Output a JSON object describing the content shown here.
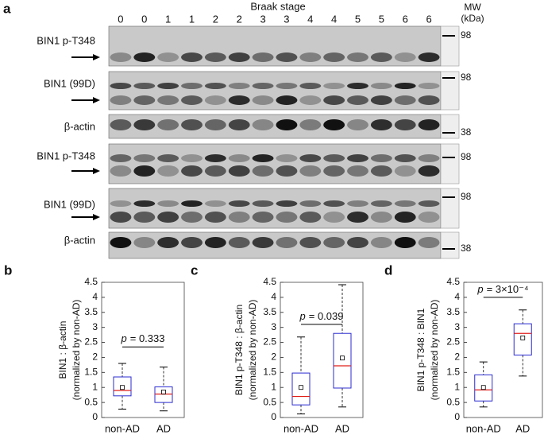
{
  "blot": {
    "panel": "a",
    "title": "Braak stage",
    "lanes": [
      "0",
      "0",
      "1",
      "1",
      "2",
      "2",
      "3",
      "3",
      "4",
      "4",
      "5",
      "5",
      "6",
      "6"
    ],
    "mw_label": [
      "MW",
      "(kDa)"
    ],
    "rows": [
      {
        "label": "BIN1 p-T348",
        "arrow": true,
        "mw": 98
      },
      {
        "label": "BIN1 (99D)",
        "arrow": true,
        "mw": 98
      },
      {
        "label": "β-actin",
        "arrow": false,
        "mw": 38
      },
      {
        "label": "BIN1 p-T348",
        "arrow": true,
        "mw": 98
      },
      {
        "label": "BIN1 (99D)",
        "arrow": true,
        "mw": 98
      },
      {
        "label": "β-actin",
        "arrow": false,
        "mw": 38
      }
    ]
  },
  "chart_data": [
    {
      "type": "box",
      "panel": "b",
      "ylabel": [
        "BIN1 : β-actin",
        "(normalized by non-AD)"
      ],
      "categories": [
        "non-AD",
        "AD"
      ],
      "ylim": [
        0,
        4.5
      ],
      "yticks": [
        0,
        0.5,
        1,
        1.5,
        2,
        2.5,
        3,
        3.5,
        4,
        4.5
      ],
      "box_color": "#2b2bd0",
      "median_color": "#e0201b",
      "boxes": [
        {
          "whislo": 0.28,
          "q1": 0.72,
          "med": 0.9,
          "q3": 1.35,
          "whishi": 1.8,
          "mean": 1.0
        },
        {
          "whislo": 0.22,
          "q1": 0.5,
          "med": 0.78,
          "q3": 1.02,
          "whishi": 1.68,
          "mean": 0.85
        }
      ],
      "annotation": {
        "symbol": "p",
        "text": "= 0.333"
      }
    },
    {
      "type": "box",
      "panel": "c",
      "ylabel": [
        "BIN1 p-T348 : β-actin",
        "(normalized by non-AD)"
      ],
      "categories": [
        "non-AD",
        "AD"
      ],
      "ylim": [
        0,
        4.5
      ],
      "yticks": [
        0,
        0.5,
        1,
        1.5,
        2,
        2.5,
        3,
        3.5,
        4,
        4.5
      ],
      "box_color": "#2b2bd0",
      "median_color": "#e0201b",
      "boxes": [
        {
          "whislo": 0.12,
          "q1": 0.42,
          "med": 0.7,
          "q3": 1.48,
          "whishi": 2.68,
          "mean": 1.0
        },
        {
          "whislo": 0.35,
          "q1": 0.98,
          "med": 1.72,
          "q3": 2.8,
          "whishi": 4.42,
          "mean": 1.98
        }
      ],
      "annotation": {
        "symbol": "p",
        "text": "= 0.039"
      }
    },
    {
      "type": "box",
      "panel": "d",
      "ylabel": [
        "BIN1 p-T348 : BIN1",
        "(normalized by non-AD)"
      ],
      "categories": [
        "non-AD",
        "AD"
      ],
      "ylim": [
        0,
        4.5
      ],
      "yticks": [
        0,
        0.5,
        1,
        1.5,
        2,
        2.5,
        3,
        3.5,
        4,
        4.5
      ],
      "box_color": "#2b2bd0",
      "median_color": "#e0201b",
      "boxes": [
        {
          "whislo": 0.35,
          "q1": 0.55,
          "med": 0.92,
          "q3": 1.42,
          "whishi": 1.85,
          "mean": 1.0
        },
        {
          "whislo": 1.38,
          "q1": 2.08,
          "med": 2.8,
          "q3": 3.12,
          "whishi": 3.58,
          "mean": 2.65
        }
      ],
      "annotation": {
        "symbol": "p",
        "text": "= 3×10⁻⁴"
      }
    }
  ]
}
